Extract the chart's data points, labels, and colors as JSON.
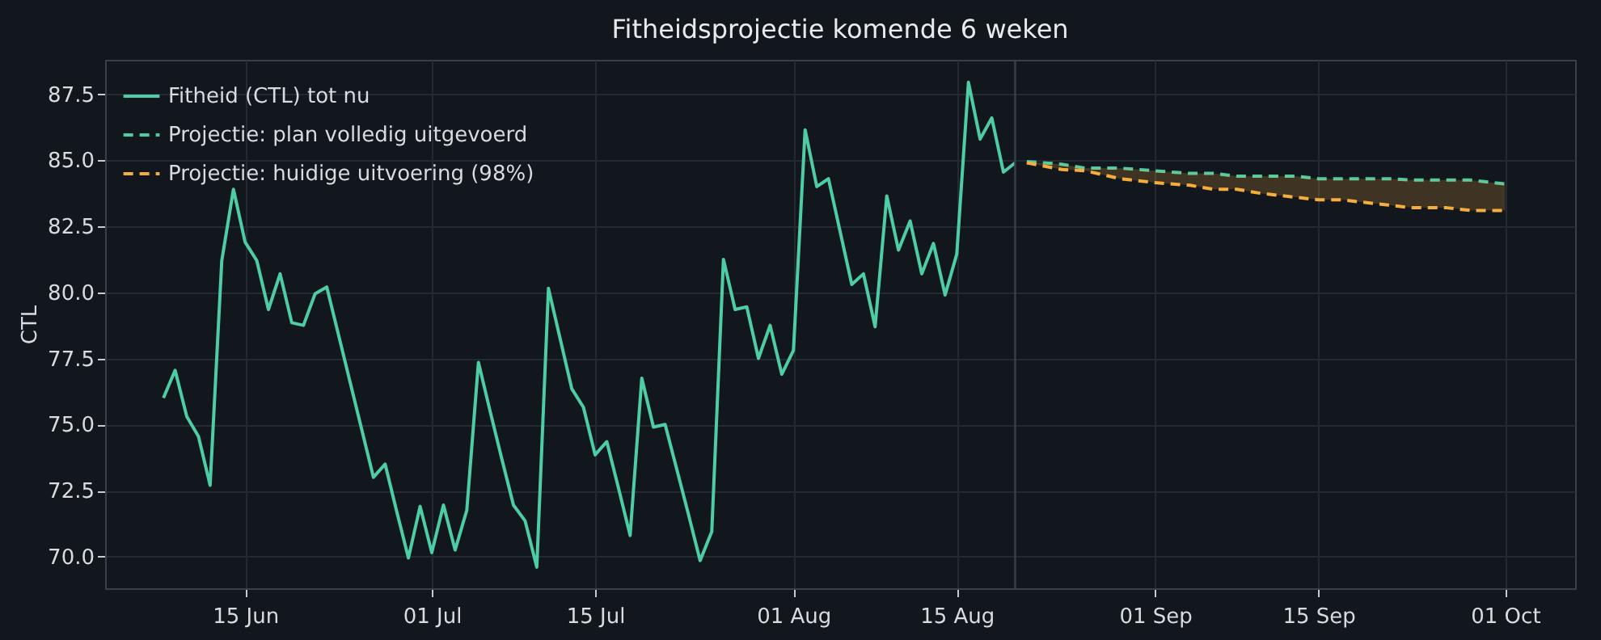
{
  "chart_data": {
    "type": "line",
    "title": "Fitheidsprojectie komende 6 weken",
    "ylabel": "CTL",
    "xlim": [
      "--06-03",
      "--10-07"
    ],
    "ylim": [
      68.8,
      88.8
    ],
    "xticks": [
      {
        "value": "--06-15",
        "label": "15 Jun"
      },
      {
        "value": "--07-01",
        "label": "01 Jul"
      },
      {
        "value": "--07-15",
        "label": "15 Jul"
      },
      {
        "value": "--08-01",
        "label": "01 Aug"
      },
      {
        "value": "--08-15",
        "label": "15 Aug"
      },
      {
        "value": "--09-01",
        "label": "01 Sep"
      },
      {
        "value": "--09-15",
        "label": "15 Sep"
      },
      {
        "value": "--10-01",
        "label": "01 Oct"
      }
    ],
    "yticks": [
      {
        "value": 70,
        "label": "70.0"
      },
      {
        "value": 72.5,
        "label": "72.5"
      },
      {
        "value": 75,
        "label": "75.0"
      },
      {
        "value": 77.5,
        "label": "77.5"
      },
      {
        "value": 80,
        "label": "80.0"
      },
      {
        "value": 82.5,
        "label": "82.5"
      },
      {
        "value": 85,
        "label": "85.0"
      },
      {
        "value": 87.5,
        "label": "87.5"
      }
    ],
    "grid": true,
    "legend": "top left",
    "marker": "none",
    "ref_lines": [
      {
        "axis": "x",
        "value": "--08-20",
        "color": "#3a404b"
      }
    ],
    "series": [
      {
        "name": "Fitheid (CTL) tot nu",
        "color": "#4ecca3",
        "line_style": "solid",
        "x": [
          "--06-08",
          "--06-09",
          "--06-10",
          "--06-11",
          "--06-12",
          "--06-13",
          "--06-14",
          "--06-15",
          "--06-16",
          "--06-17",
          "--06-18",
          "--06-19",
          "--06-20",
          "--06-21",
          "--06-22",
          "--06-23",
          "--06-24",
          "--06-25",
          "--06-26",
          "--06-27",
          "--06-28",
          "--06-29",
          "--06-30",
          "--07-01",
          "--07-02",
          "--07-03",
          "--07-04",
          "--07-05",
          "--07-06",
          "--07-07",
          "--07-08",
          "--07-09",
          "--07-10",
          "--07-11",
          "--07-12",
          "--07-13",
          "--07-14",
          "--07-15",
          "--07-16",
          "--07-17",
          "--07-18",
          "--07-19",
          "--07-20",
          "--07-21",
          "--07-22",
          "--07-23",
          "--07-24",
          "--07-25",
          "--07-26",
          "--07-27",
          "--07-28",
          "--07-29",
          "--07-30",
          "--07-31",
          "--08-01",
          "--08-02",
          "--08-03",
          "--08-04",
          "--08-05",
          "--08-06",
          "--08-07",
          "--08-08",
          "--08-09",
          "--08-10",
          "--08-11",
          "--08-12",
          "--08-13",
          "--08-14",
          "--08-15",
          "--08-16",
          "--08-17",
          "--08-18",
          "--08-19",
          "--08-20"
        ],
        "values": [
          76.0,
          77.05,
          75.3,
          74.55,
          72.7,
          81.2,
          83.9,
          81.9,
          81.2,
          79.35,
          80.7,
          78.85,
          78.75,
          79.95,
          80.2,
          78.4,
          76.6,
          74.8,
          73.0,
          73.5,
          71.7,
          69.95,
          71.9,
          70.15,
          71.95,
          70.25,
          71.75,
          77.35,
          75.5,
          73.7,
          71.95,
          71.35,
          69.6,
          80.15,
          78.25,
          76.35,
          75.65,
          73.85,
          74.35,
          72.6,
          70.8,
          76.75,
          74.9,
          75.0,
          73.3,
          71.6,
          69.85,
          70.95,
          81.25,
          79.35,
          79.45,
          77.5,
          78.75,
          76.9,
          77.8,
          86.15,
          84.0,
          84.3,
          82.3,
          80.3,
          80.7,
          78.7,
          83.65,
          81.6,
          82.7,
          80.7,
          81.85,
          79.9,
          81.45,
          87.95,
          85.8,
          86.6,
          84.55,
          84.9
        ]
      },
      {
        "name": "Projectie: plan volledig uitgevoerd",
        "color": "#4ecca3",
        "line_style": "dashed",
        "x": [
          "--08-21",
          "--08-24",
          "--08-26",
          "--08-29",
          "--09-01",
          "--09-04",
          "--09-06",
          "--09-08",
          "--09-10",
          "--09-13",
          "--09-15",
          "--09-17",
          "--09-19",
          "--09-21",
          "--09-23",
          "--09-26",
          "--09-28",
          "--10-01"
        ],
        "values": [
          84.95,
          84.85,
          84.7,
          84.7,
          84.6,
          84.5,
          84.5,
          84.4,
          84.4,
          84.4,
          84.3,
          84.3,
          84.3,
          84.3,
          84.25,
          84.25,
          84.25,
          84.1
        ]
      },
      {
        "name": "Projectie: huidige uitvoering (98%)",
        "color": "#f6ad3c",
        "line_style": "dashed",
        "x": [
          "--08-21",
          "--08-24",
          "--08-26",
          "--08-29",
          "--09-01",
          "--09-04",
          "--09-06",
          "--09-08",
          "--09-10",
          "--09-13",
          "--09-15",
          "--09-17",
          "--09-19",
          "--09-21",
          "--09-23",
          "--09-26",
          "--09-28",
          "--10-01"
        ],
        "values": [
          84.9,
          84.65,
          84.6,
          84.3,
          84.15,
          84.05,
          83.9,
          83.9,
          83.75,
          83.6,
          83.5,
          83.5,
          83.4,
          83.3,
          83.2,
          83.2,
          83.1,
          83.1
        ],
        "lower": [
          84.9,
          84.65,
          84.6,
          84.3,
          84.15,
          84.05,
          83.9,
          83.9,
          83.75,
          83.6,
          83.5,
          83.5,
          83.4,
          83.3,
          83.2,
          83.2,
          83.1,
          83.1
        ],
        "upper": [
          84.95,
          84.85,
          84.7,
          84.7,
          84.6,
          84.5,
          84.5,
          84.4,
          84.4,
          84.4,
          84.3,
          84.3,
          84.3,
          84.3,
          84.25,
          84.25,
          84.25,
          84.1
        ]
      }
    ]
  }
}
